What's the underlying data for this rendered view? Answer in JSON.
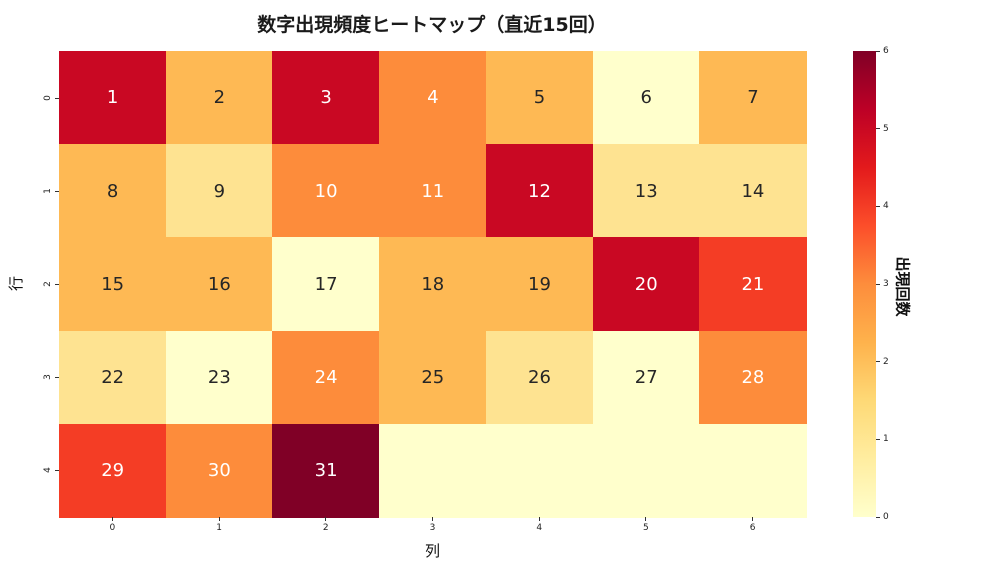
{
  "chart_data": {
    "type": "heatmap",
    "title": "数字出現頻度ヒートマップ（直近15回）",
    "xlabel": "列",
    "ylabel": "行",
    "colorbar_label": "出現回数",
    "colormap": "YlOrRd",
    "vmin": 0,
    "vmax": 6,
    "colorbar_ticks": [
      "0",
      "1",
      "2",
      "3",
      "4",
      "5",
      "6"
    ],
    "x_ticks": [
      "0",
      "1",
      "2",
      "3",
      "4",
      "5",
      "6"
    ],
    "y_ticks": [
      "0",
      "1",
      "2",
      "3",
      "4"
    ],
    "annotations": [
      [
        "1",
        "2",
        "3",
        "4",
        "5",
        "6",
        "7"
      ],
      [
        "8",
        "9",
        "10",
        "11",
        "12",
        "13",
        "14"
      ],
      [
        "15",
        "16",
        "17",
        "18",
        "19",
        "20",
        "21"
      ],
      [
        "22",
        "23",
        "24",
        "25",
        "26",
        "27",
        "28"
      ],
      [
        "29",
        "30",
        "31",
        "",
        "",
        "",
        ""
      ]
    ],
    "values": [
      [
        5,
        2,
        5,
        3,
        2,
        0,
        2
      ],
      [
        2,
        1,
        3,
        3,
        5,
        1,
        1
      ],
      [
        2,
        2,
        0,
        2,
        2,
        5,
        4
      ],
      [
        1,
        0,
        3,
        2,
        1,
        0,
        3
      ],
      [
        4,
        3,
        6,
        0,
        0,
        0,
        0
      ]
    ],
    "color_scale": {
      "0": "#ffffcc",
      "1": "#fee391",
      "2": "#feb954",
      "3": "#fd8c3b",
      "4": "#f43d25",
      "5": "#c90823",
      "6": "#800026"
    },
    "text_color_dark": "#262626",
    "text_color_light": "#ffffff"
  }
}
